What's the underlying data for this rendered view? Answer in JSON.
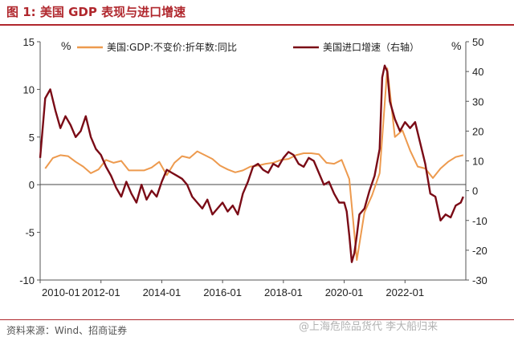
{
  "figure_title": "图 1:  美国 GDP 表现与进口增速",
  "source": "资料来源：Wind、招商证券",
  "watermark": "@上海危险品货代  李大船归来",
  "colors": {
    "gdp": "#ed9a4e",
    "imports": "#7a0b16",
    "accent": "#b0272d"
  },
  "chart_data": {
    "type": "line",
    "title": "",
    "legend_placement": "top",
    "grid": false,
    "x_ticks": [
      "2010-01",
      "2012-01",
      "2014-01",
      "2016-01",
      "2018-01",
      "2020-01",
      "2022-01"
    ],
    "x_range": [
      "2010-01",
      "2023-12"
    ],
    "left_axis": {
      "unit": "%",
      "range": [
        -10,
        15
      ],
      "ticks": [
        "15",
        "10",
        "5",
        "0",
        "-5",
        "-10"
      ]
    },
    "right_axis": {
      "unit": "%",
      "range": [
        -30,
        50
      ],
      "ticks": [
        "50",
        "40",
        "30",
        "20",
        "10",
        "0",
        "-10",
        "-20",
        "-30"
      ]
    },
    "series": [
      {
        "name": "美国:GDP:不变价:折年数:同比",
        "axis": "left",
        "style": "quarterly",
        "x": [
          "2010-03",
          "2010-06",
          "2010-09",
          "2010-12",
          "2011-03",
          "2011-06",
          "2011-09",
          "2011-12",
          "2012-03",
          "2012-06",
          "2012-09",
          "2012-12",
          "2013-03",
          "2013-06",
          "2013-09",
          "2013-12",
          "2014-03",
          "2014-06",
          "2014-09",
          "2014-12",
          "2015-03",
          "2015-06",
          "2015-09",
          "2015-12",
          "2016-03",
          "2016-06",
          "2016-09",
          "2016-12",
          "2017-03",
          "2017-06",
          "2017-09",
          "2017-12",
          "2018-03",
          "2018-06",
          "2018-09",
          "2018-12",
          "2019-03",
          "2019-06",
          "2019-09",
          "2019-12",
          "2020-03",
          "2020-06",
          "2020-09",
          "2020-12",
          "2021-03",
          "2021-06",
          "2021-09",
          "2021-12",
          "2022-03",
          "2022-06",
          "2022-09",
          "2022-12",
          "2023-03",
          "2023-06",
          "2023-09",
          "2023-12"
        ],
        "values": [
          1.7,
          2.8,
          3.1,
          3.0,
          2.4,
          1.9,
          1.2,
          1.6,
          2.6,
          2.3,
          2.5,
          1.5,
          1.5,
          1.5,
          1.8,
          2.4,
          1.0,
          2.3,
          3.0,
          2.8,
          3.5,
          3.1,
          2.7,
          2.0,
          1.6,
          1.3,
          1.5,
          1.9,
          2.0,
          2.2,
          2.3,
          2.6,
          2.7,
          3.1,
          3.3,
          3.3,
          3.2,
          2.3,
          2.2,
          2.6,
          0.6,
          -7.9,
          -2.9,
          -1.1,
          1.2,
          12.2,
          5.0,
          5.7,
          3.6,
          1.9,
          1.7,
          0.7,
          1.7,
          2.4,
          2.9,
          3.1
        ]
      },
      {
        "name": "美国进口增速（右轴）",
        "axis": "right",
        "style": "monthly",
        "x": [
          "2010-01",
          "2010-03",
          "2010-05",
          "2010-07",
          "2010-09",
          "2010-11",
          "2011-01",
          "2011-03",
          "2011-05",
          "2011-07",
          "2011-09",
          "2011-11",
          "2012-01",
          "2012-03",
          "2012-05",
          "2012-07",
          "2012-09",
          "2012-11",
          "2013-01",
          "2013-03",
          "2013-05",
          "2013-07",
          "2013-09",
          "2013-11",
          "2014-01",
          "2014-03",
          "2014-05",
          "2014-07",
          "2014-09",
          "2014-11",
          "2015-01",
          "2015-03",
          "2015-05",
          "2015-07",
          "2015-09",
          "2015-11",
          "2016-01",
          "2016-03",
          "2016-05",
          "2016-07",
          "2016-09",
          "2016-11",
          "2017-01",
          "2017-03",
          "2017-05",
          "2017-07",
          "2017-09",
          "2017-11",
          "2018-01",
          "2018-03",
          "2018-05",
          "2018-07",
          "2018-09",
          "2018-11",
          "2019-01",
          "2019-03",
          "2019-05",
          "2019-07",
          "2019-09",
          "2019-11",
          "2020-01",
          "2020-02",
          "2020-03",
          "2020-04",
          "2020-05",
          "2020-06",
          "2020-07",
          "2020-09",
          "2020-11",
          "2021-01",
          "2021-03",
          "2021-04",
          "2021-05",
          "2021-06",
          "2021-07",
          "2021-09",
          "2021-11",
          "2022-01",
          "2022-03",
          "2022-05",
          "2022-07",
          "2022-09",
          "2022-11",
          "2023-01",
          "2023-03",
          "2023-05",
          "2023-07",
          "2023-09",
          "2023-11",
          "2023-12"
        ],
        "values": [
          11,
          31,
          34,
          27,
          21,
          25,
          22,
          18,
          20,
          25,
          18,
          14,
          12,
          8,
          5,
          1,
          -2,
          3,
          -1,
          -4,
          2,
          -3,
          0,
          -2,
          3,
          7,
          6,
          5,
          4,
          2,
          -2,
          -4,
          -6,
          -3,
          -8,
          -6,
          -4,
          -7,
          -5,
          -8,
          -1,
          3,
          8,
          9,
          7,
          6,
          9,
          8,
          11,
          13,
          12,
          9,
          8,
          11,
          10,
          6,
          2,
          3,
          -1,
          -4,
          -4,
          -7,
          -15,
          -24,
          -21,
          -15,
          -8,
          -6,
          0,
          5,
          14,
          38,
          42,
          40,
          30,
          24,
          20,
          23,
          21,
          23,
          16,
          9,
          -1,
          -2,
          -10,
          -8,
          -9,
          -5,
          -4,
          -2
        ]
      }
    ]
  }
}
